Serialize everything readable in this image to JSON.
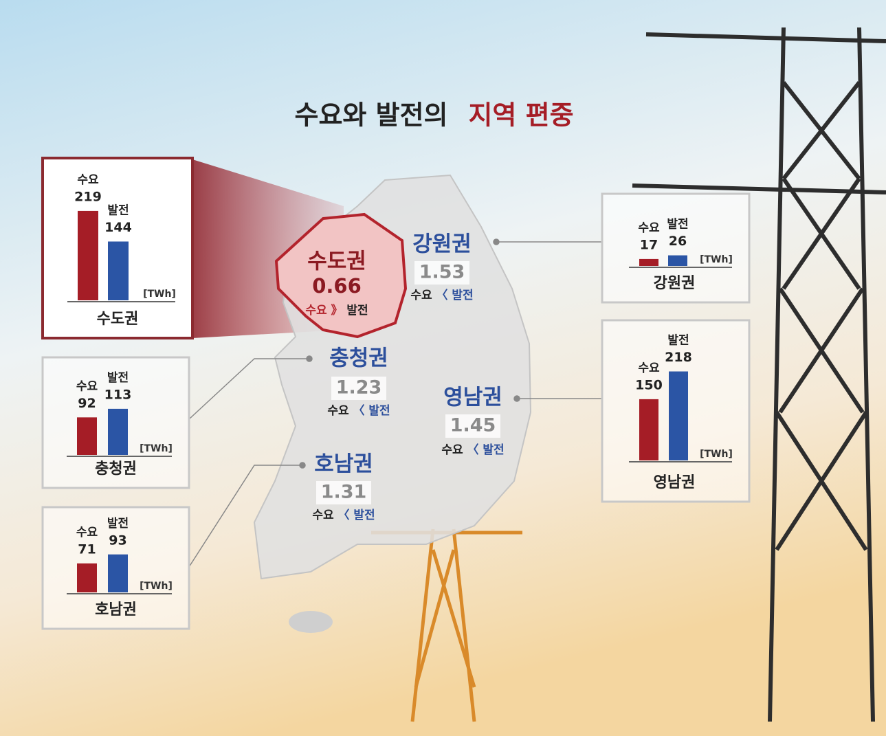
{
  "title": {
    "main": "수요와 발전의",
    "highlight": "지역 편중"
  },
  "chart_data": [
    {
      "type": "bar",
      "title": "수도권",
      "unit": "[TWh]",
      "categories": [
        "수요",
        "발전"
      ],
      "values": [
        219,
        144
      ],
      "colors": [
        "#a51d26",
        "#2b55a5"
      ]
    },
    {
      "type": "bar",
      "title": "충청권",
      "unit": "[TWh]",
      "categories": [
        "수요",
        "발전"
      ],
      "values": [
        92,
        113
      ],
      "colors": [
        "#a51d26",
        "#2b55a5"
      ]
    },
    {
      "type": "bar",
      "title": "호남권",
      "unit": "[TWh]",
      "categories": [
        "수요",
        "발전"
      ],
      "values": [
        71,
        93
      ],
      "colors": [
        "#a51d26",
        "#2b55a5"
      ]
    },
    {
      "type": "bar",
      "title": "강원권",
      "unit": "[TWh]",
      "categories": [
        "수요",
        "발전"
      ],
      "values": [
        17,
        26
      ],
      "colors": [
        "#a51d26",
        "#2b55a5"
      ]
    },
    {
      "type": "bar",
      "title": "영남권",
      "unit": "[TWh]",
      "categories": [
        "수요",
        "발전"
      ],
      "values": [
        150,
        218
      ],
      "colors": [
        "#a51d26",
        "#2b55a5"
      ]
    }
  ],
  "map": {
    "regions": [
      {
        "name": "수도권",
        "ratio": 0.66,
        "relation": {
          "left": "수요",
          "symbol": "》",
          "right": "발전"
        }
      },
      {
        "name": "강원권",
        "ratio": 1.53,
        "relation": {
          "left": "수요",
          "symbol": "〈",
          "right": "발전"
        }
      },
      {
        "name": "충청권",
        "ratio": 1.23,
        "relation": {
          "left": "수요",
          "symbol": "〈",
          "right": "발전"
        }
      },
      {
        "name": "영남권",
        "ratio": 1.45,
        "relation": {
          "left": "수요",
          "symbol": "〈",
          "right": "발전"
        }
      },
      {
        "name": "호남권",
        "ratio": 1.31,
        "relation": {
          "left": "수요",
          "symbol": "〈",
          "right": "발전"
        }
      }
    ]
  }
}
